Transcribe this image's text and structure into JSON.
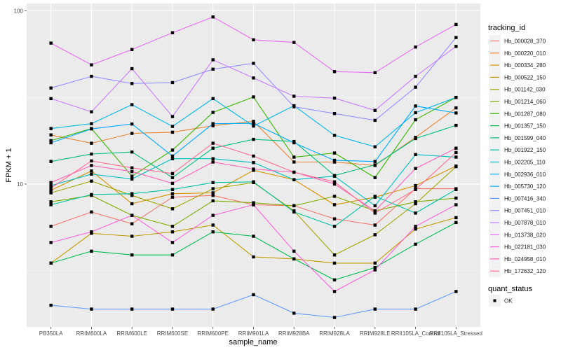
{
  "chart_data": {
    "type": "line",
    "title": "",
    "xlabel": "sample_name",
    "ylabel": "FPKM + 1",
    "yscale": "log10",
    "ylim": [
      1.5,
      110
    ],
    "yticks": [
      10,
      100
    ],
    "ytick_labels": [
      "10",
      "100"
    ],
    "grid": true,
    "legend_position": "right",
    "categories": [
      "PB350LA",
      "RRIM600LA",
      "RRIM600LE",
      "RRIM600SE",
      "RRIM600PE",
      "RRIM901LA",
      "RRIM928BA",
      "RRIM928LA",
      "RRIM928LE",
      "RRII105LA_Control",
      "RRII105LA_Stressed"
    ],
    "series": [
      {
        "name": "Hb_000028_370",
        "color": "#F8766D",
        "values": [
          5.7,
          6.9,
          5.9,
          8.4,
          8.6,
          7.6,
          7.5,
          6.3,
          5.8,
          9.4,
          9.4
        ]
      },
      {
        "name": "Hb_000220_010",
        "color": "#EA8331",
        "values": [
          19.2,
          17.2,
          19.6,
          19.9,
          21.7,
          23.0,
          13.4,
          13.4,
          12.8,
          18.6,
          27.5
        ]
      },
      {
        "name": "Hb_000334_280",
        "color": "#D89000",
        "values": [
          9.2,
          11.9,
          7.7,
          8.8,
          8.9,
          12.0,
          10.6,
          7.6,
          8.4,
          9.8,
          12.7
        ]
      },
      {
        "name": "Hb_000522_150",
        "color": "#C09B00",
        "values": [
          3.5,
          5.2,
          5.0,
          5.3,
          5.8,
          3.8,
          3.7,
          3.5,
          3.5,
          5.5,
          6.4
        ]
      },
      {
        "name": "Hb_001142_030",
        "color": "#A3A500",
        "values": [
          8.9,
          10.4,
          8.6,
          7.2,
          9.4,
          10.2,
          7.0,
          3.9,
          5.1,
          7.7,
          12.6
        ]
      },
      {
        "name": "Hb_001214_060",
        "color": "#7CAE00",
        "values": [
          7.9,
          8.6,
          6.6,
          5.7,
          8.0,
          7.8,
          7.5,
          8.5,
          7.0,
          7.9,
          8.3
        ]
      },
      {
        "name": "Hb_001287_080",
        "color": "#39B600",
        "values": [
          17.8,
          20.9,
          11.1,
          15.7,
          25.9,
          31.8,
          14.3,
          15.1,
          10.9,
          23.5,
          31.6
        ]
      },
      {
        "name": "Hb_001357_150",
        "color": "#00BB4E",
        "values": [
          3.5,
          4.1,
          3.9,
          3.9,
          5.3,
          5.0,
          3.7,
          2.8,
          3.3,
          4.5,
          6.0
        ]
      },
      {
        "name": "Hb_001599_040",
        "color": "#00BF7D",
        "values": [
          13.5,
          14.9,
          15.3,
          10.9,
          16.1,
          18.1,
          17.6,
          11.2,
          12.9,
          18.3,
          21.8
        ]
      },
      {
        "name": "Hb_001922_150",
        "color": "#00C1A3",
        "values": [
          7.6,
          8.7,
          8.8,
          9.3,
          10.2,
          10.3,
          6.9,
          5.7,
          8.5,
          6.8,
          9.3
        ]
      },
      {
        "name": "Hb_002205_110",
        "color": "#00BFC4",
        "values": [
          9.8,
          11.4,
          10.7,
          14.0,
          14.0,
          13.3,
          10.6,
          11.1,
          7.5,
          14.8,
          14.3
        ]
      },
      {
        "name": "Hb_002936_010",
        "color": "#00B8E7",
        "values": [
          20.9,
          22.3,
          28.7,
          21.5,
          31.1,
          21.6,
          28.3,
          19.1,
          16.4,
          25.8,
          31.6
        ]
      },
      {
        "name": "Hb_005730_120",
        "color": "#00A9FF",
        "values": [
          17.3,
          20.8,
          22.2,
          14.5,
          22.3,
          22.4,
          17.3,
          13.7,
          13.5,
          28.2,
          25.7
        ]
      },
      {
        "name": "Hb_007416_340",
        "color": "#619CFF",
        "values": [
          2.0,
          1.9,
          1.9,
          1.9,
          1.9,
          2.3,
          1.8,
          1.7,
          1.9,
          1.9,
          2.4
        ]
      },
      {
        "name": "Hb_007451_010",
        "color": "#9590FF",
        "values": [
          35.8,
          41.8,
          38.0,
          38.5,
          46.0,
          49.7,
          27.9,
          25.5,
          23.3,
          36.2,
          70.0
        ]
      },
      {
        "name": "Hb_007878_010",
        "color": "#C77CFF",
        "values": [
          31.1,
          26.1,
          46.3,
          24.5,
          52.1,
          40.9,
          32.1,
          31.3,
          26.6,
          41.8,
          62.2
        ]
      },
      {
        "name": "Hb_013738_020",
        "color": "#E76BF3",
        "values": [
          65.0,
          48.7,
          59.7,
          74.6,
          92.0,
          67.9,
          65.6,
          44.5,
          43.9,
          61.7,
          83.3
        ]
      },
      {
        "name": "Hb_022181_030",
        "color": "#FA62DB",
        "values": [
          4.6,
          5.3,
          6.6,
          4.6,
          6.6,
          7.6,
          4.1,
          2.4,
          3.2,
          5.7,
          7.6
        ]
      },
      {
        "name": "Hb_024958_010",
        "color": "#FF62BC",
        "values": [
          10.2,
          12.8,
          11.8,
          10.1,
          13.4,
          12.2,
          11.7,
          10.0,
          7.0,
          12.3,
          16.1
        ]
      },
      {
        "name": "Hb_172632_120",
        "color": "#FF6C91",
        "values": [
          9.5,
          13.6,
          12.4,
          11.5,
          17.2,
          14.5,
          11.7,
          10.3,
          6.8,
          9.3,
          15.2
        ]
      }
    ],
    "legend": {
      "color_title": "tracking_id",
      "shape_title": "quant_status",
      "shape_entries": [
        "OK"
      ]
    }
  }
}
